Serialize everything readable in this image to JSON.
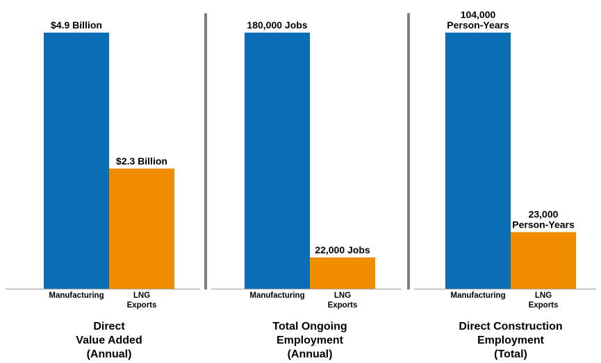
{
  "chart_data": {
    "type": "bar",
    "panels": [
      {
        "title": [
          "Direct",
          "Value Added",
          "(Annual)"
        ],
        "categories": [
          [
            "Manufacturing"
          ],
          [
            "LNG",
            "Exports"
          ]
        ],
        "values": [
          4.9,
          2.3
        ],
        "units": "Billion",
        "data_labels": [
          [
            "$4.9 Billion"
          ],
          [
            "$2.3 Billion"
          ]
        ]
      },
      {
        "title": [
          "Total Ongoing",
          "Employment",
          "(Annual)"
        ],
        "categories": [
          [
            "Manufacturing"
          ],
          [
            "LNG",
            "Exports"
          ]
        ],
        "values": [
          180000,
          22000
        ],
        "units": "Jobs",
        "data_labels": [
          [
            "180,000 Jobs"
          ],
          [
            "22,000 Jobs"
          ]
        ]
      },
      {
        "title": [
          "Direct Construction",
          "Employment",
          "(Total)"
        ],
        "categories": [
          [
            "Manufacturing"
          ],
          [
            "LNG",
            "Exports"
          ]
        ],
        "values": [
          104000,
          23000
        ],
        "units": "Person-Years",
        "data_labels": [
          [
            "104,000",
            "Person-Years"
          ],
          [
            "23,000",
            "Person-Years"
          ]
        ]
      }
    ],
    "series_colors": [
      "#0a6eb4",
      "#f08c00"
    ],
    "divider_color": "#7f7f7f",
    "axis_color": "#a6a6a6",
    "grid": false,
    "legend": "none"
  }
}
